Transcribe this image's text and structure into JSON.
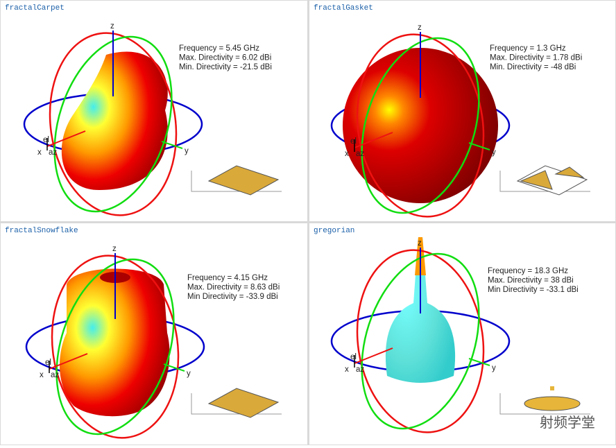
{
  "panels": [
    {
      "title": "fractalCarpet",
      "info": [
        "Frequency = 5.45 GHz",
        "Max. Directivity = 6.02 dBi",
        "Min. Directivity = -21.5 dBi"
      ],
      "axes": {
        "z": "z",
        "y": "y",
        "x": "x",
        "el": "el",
        "az": "az"
      }
    },
    {
      "title": "fractalGasket",
      "info": [
        "Frequency = 1.3 GHz",
        "Max. Directivity = 1.78 dBi",
        "Min. Directivity = -48 dBi"
      ],
      "axes": {
        "z": "z",
        "y": "y",
        "x": "x",
        "el": "el",
        "az": "az"
      }
    },
    {
      "title": "fractalSnowflake",
      "info": [
        "Frequency = 4.15 GHz",
        "Max. Directivity = 8.63 dBi",
        "Min Directivity = -33.9 dBi"
      ],
      "axes": {
        "z": "z",
        "y": "y",
        "x": "x",
        "el": "el",
        "az": "az"
      }
    },
    {
      "title": "gregorian",
      "info": [
        "Frequency = 18.3 GHz",
        "Max. Directivity = 38 dBi",
        "Min Directivity = -33.1 dBi"
      ],
      "axes": {
        "z": "z",
        "y": "y",
        "x": "x",
        "el": "el",
        "az": "az"
      }
    }
  ],
  "watermark": "射频学堂"
}
